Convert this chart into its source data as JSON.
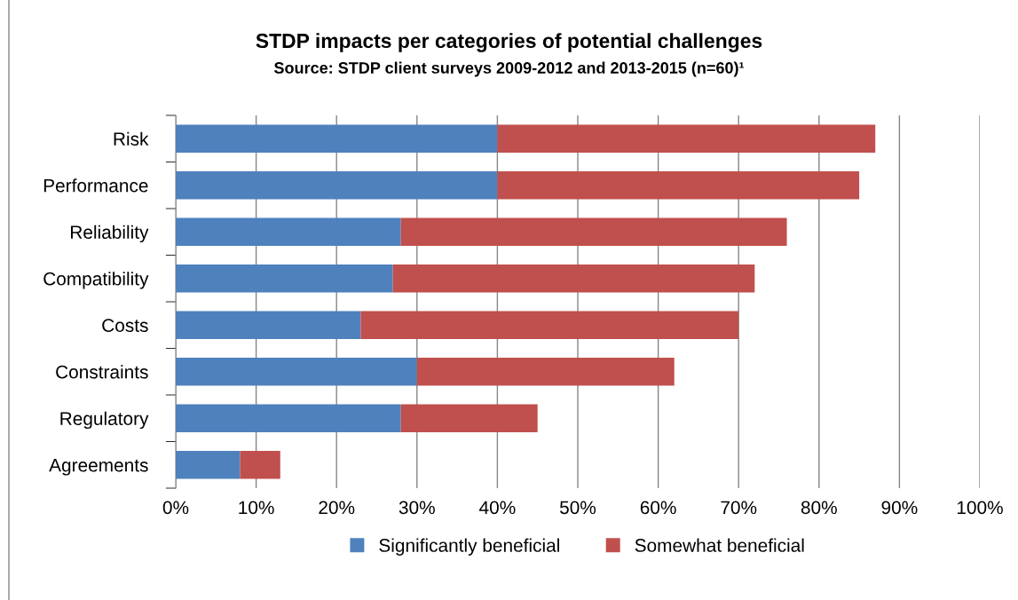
{
  "chart_data": {
    "type": "bar",
    "orientation": "horizontal",
    "stacked": true,
    "title": "STDP impacts per categories of potential challenges",
    "subtitle": "Source: STDP client surveys 2009-2012 and 2013-2015 (n=60)¹",
    "categories": [
      "Risk",
      "Performance",
      "Reliability",
      "Compatibility",
      "Costs",
      "Constraints",
      "Regulatory",
      "Agreements"
    ],
    "series": [
      {
        "name": "Significantly beneficial",
        "color": "#4f81bd",
        "values": [
          40,
          40,
          28,
          27,
          23,
          30,
          28,
          8
        ]
      },
      {
        "name": "Somewhat beneficial",
        "color": "#c0504d",
        "values": [
          47,
          45,
          48,
          45,
          47,
          32,
          17,
          5
        ]
      }
    ],
    "xlim": [
      0,
      100
    ],
    "xticks": [
      {
        "value": 0,
        "label": "0%"
      },
      {
        "value": 10,
        "label": "10%"
      },
      {
        "value": 20,
        "label": "20%"
      },
      {
        "value": 30,
        "label": "30%"
      },
      {
        "value": 40,
        "label": "40%"
      },
      {
        "value": 50,
        "label": "50%"
      },
      {
        "value": 60,
        "label": "60%"
      },
      {
        "value": 70,
        "label": "70%"
      },
      {
        "value": 80,
        "label": "80%"
      },
      {
        "value": 90,
        "label": "90%"
      },
      {
        "value": 100,
        "label": "100%"
      }
    ],
    "grid": "x",
    "legend": "bottom"
  }
}
